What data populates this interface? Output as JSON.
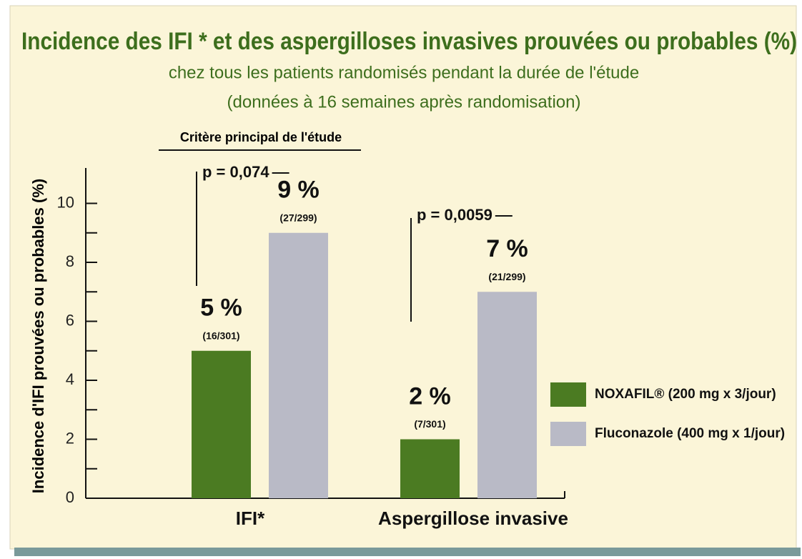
{
  "chart_data": {
    "type": "bar",
    "title": "Incidence des IFI *    et des aspergilloses invasives prouvées ou probables (%)",
    "subtitle": [
      "chez tous les patients randomisés pendant la durée de l'étude",
      "(données à 16 semaines après randomisation)"
    ],
    "header_note": "Critère principal de l'étude",
    "ylabel": "Incidence d'IFI prouvées ou probables (%)",
    "categories": [
      "IFI*",
      "Aspergillose invasive"
    ],
    "series": [
      {
        "name": "NOXAFIL® (200 mg x 3/jour)",
        "color": "#4b7b22",
        "values": [
          5,
          2
        ],
        "value_labels": [
          "5 %",
          "2 %"
        ],
        "fractions": [
          "(16/301)",
          "(7/301)"
        ]
      },
      {
        "name": "Fluconazole (400 mg x 1/jour)",
        "color": "#b9bac6",
        "values": [
          9,
          7
        ],
        "value_labels": [
          "9 %",
          "7 %"
        ],
        "fractions": [
          "(27/299)",
          "(21/299)"
        ]
      }
    ],
    "p_values": [
      "p = 0,074",
      "p = 0,0059"
    ],
    "ylim": [
      0,
      11.2
    ],
    "yticks": [
      0,
      2,
      4,
      6,
      8,
      10
    ],
    "minor_yticks": [
      1,
      3,
      5,
      7,
      9
    ],
    "legend": "right"
  }
}
